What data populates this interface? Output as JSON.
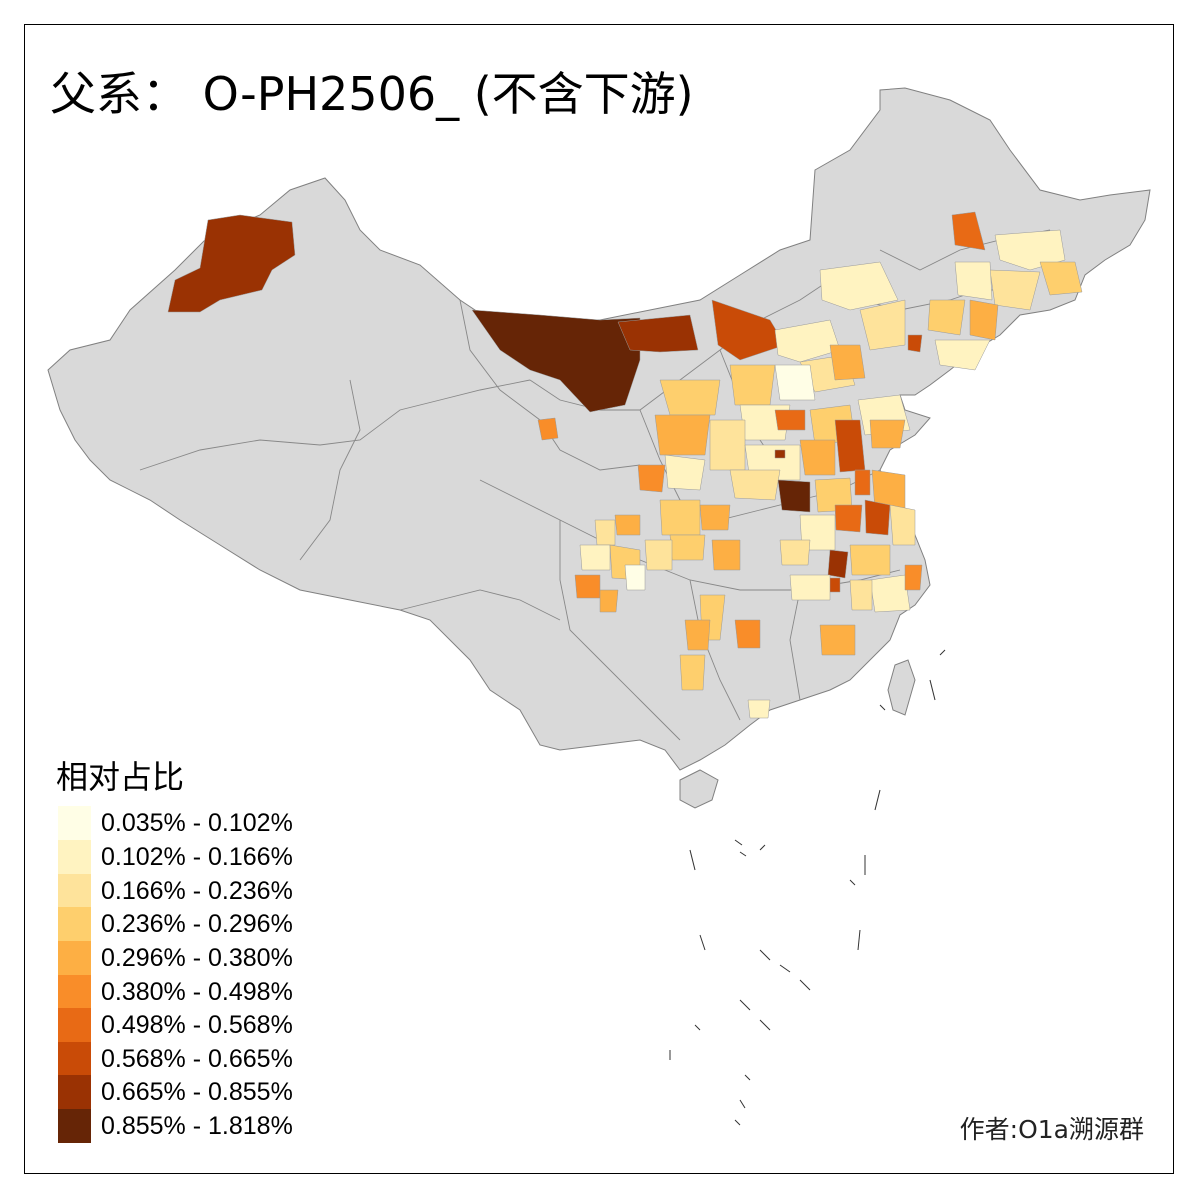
{
  "title": "父系： O-PH2506_ (不含下游)",
  "legend": {
    "title": "相对占比",
    "items": [
      {
        "label": "0.035% - 0.102%",
        "color": "#FFFEE6"
      },
      {
        "label": "0.102% - 0.166%",
        "color": "#FFF3C1"
      },
      {
        "label": "0.166% - 0.236%",
        "color": "#FEE39B"
      },
      {
        "label": "0.236% - 0.296%",
        "color": "#FECF6D"
      },
      {
        "label": "0.296% - 0.380%",
        "color": "#FDAF44"
      },
      {
        "label": "0.380% - 0.498%",
        "color": "#F98D29"
      },
      {
        "label": "0.498% - 0.568%",
        "color": "#E86A15"
      },
      {
        "label": "0.568% - 0.665%",
        "color": "#C94B07"
      },
      {
        "label": "0.665% - 0.855%",
        "color": "#9A3203"
      },
      {
        "label": "0.855% - 1.818%",
        "color": "#662506"
      }
    ]
  },
  "credit": "作者:O1a溯源群",
  "colors": {
    "land": "#D9D9D9",
    "border": "#808080",
    "frame": "#000000"
  }
}
